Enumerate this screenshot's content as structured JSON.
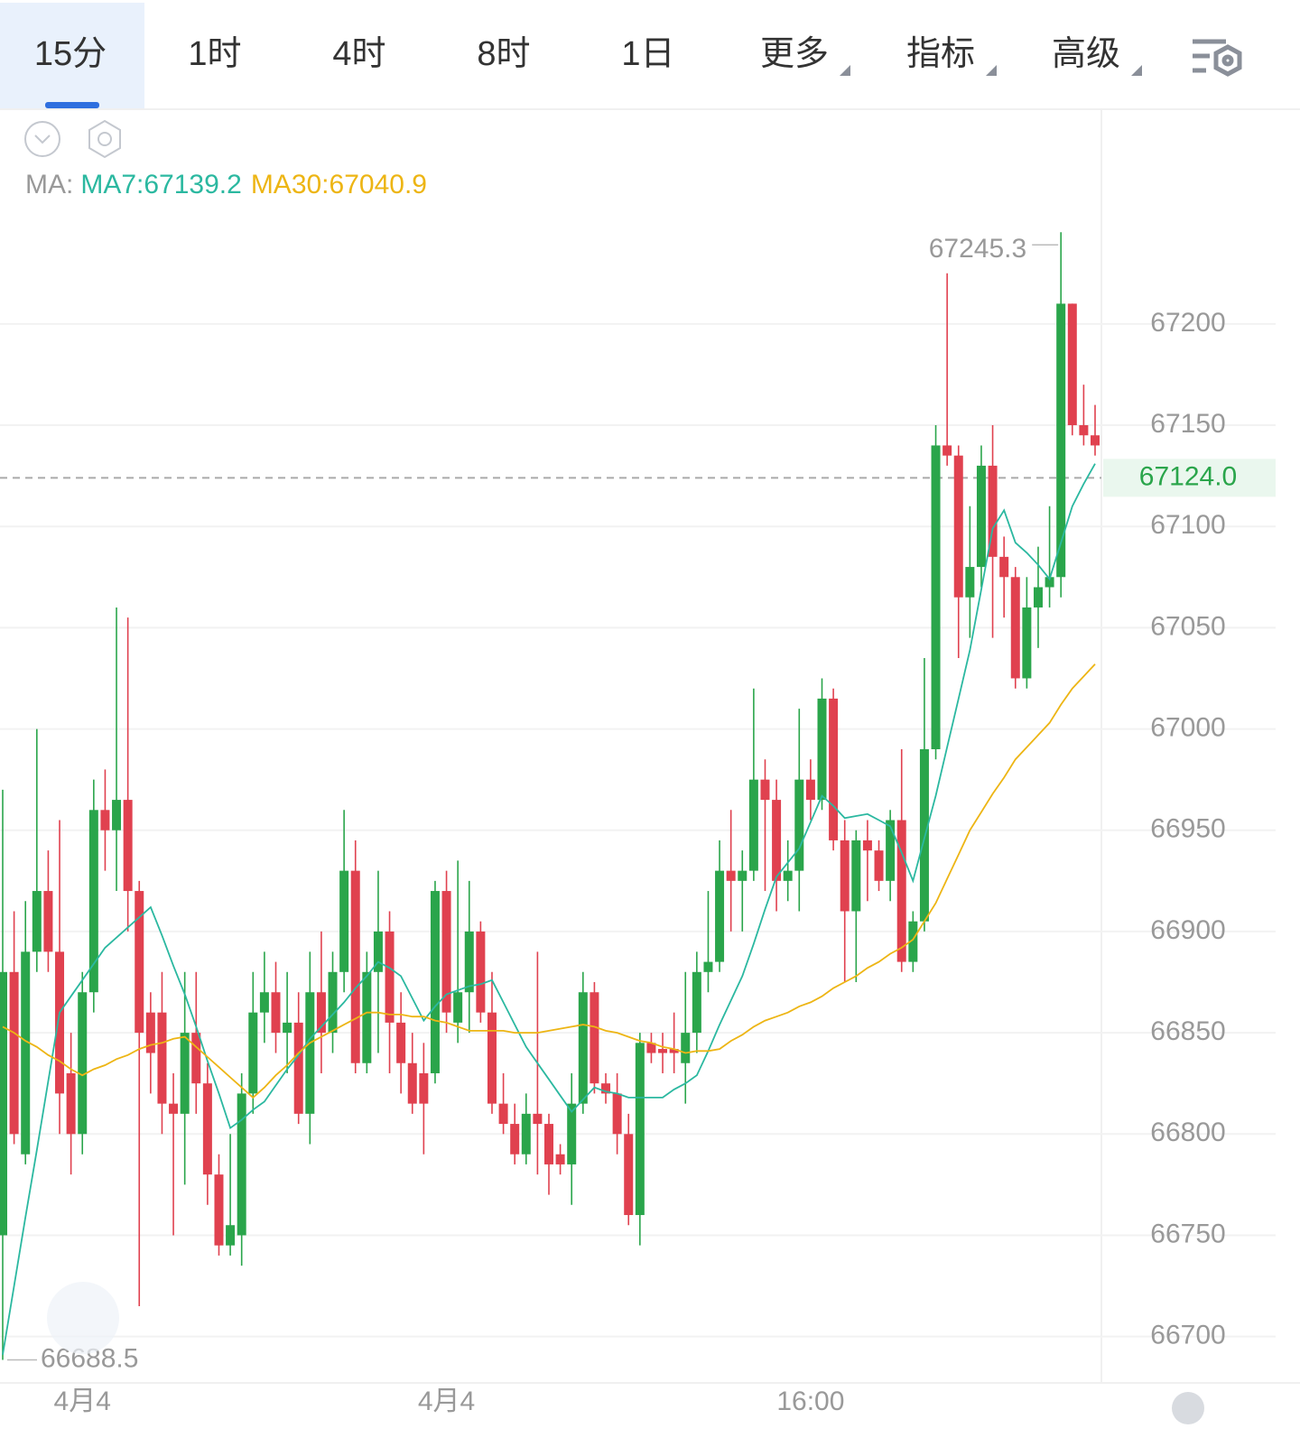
{
  "tabs": [
    "15分",
    "1时",
    "4时",
    "8时",
    "1日",
    "更多",
    "指标",
    "高级"
  ],
  "chart_data": {
    "type": "candlestick",
    "indicator_label": "MA:",
    "up_color": "#2aa54b",
    "down_color": "#e0414f",
    "categories": [
      null,
      null,
      null,
      null,
      null,
      null,
      null,
      "4月4",
      null,
      null,
      null,
      null,
      null,
      null,
      null,
      null,
      null,
      null,
      null,
      null,
      null,
      null,
      null,
      null,
      null,
      null,
      null,
      null,
      null,
      null,
      null,
      null,
      null,
      null,
      null,
      null,
      null,
      null,
      null,
      "4月4",
      null,
      null,
      null,
      null,
      null,
      null,
      null,
      null,
      null,
      null,
      null,
      null,
      null,
      null,
      null,
      null,
      null,
      null,
      null,
      null,
      null,
      null,
      null,
      null,
      null,
      null,
      null,
      null,
      null,
      null,
      null,
      "16:00",
      null,
      null,
      null,
      null,
      null,
      null,
      null,
      null,
      null,
      null,
      null,
      null,
      null,
      null,
      null,
      null,
      null,
      null,
      null,
      null,
      null,
      null,
      null,
      null,
      null
    ],
    "open": [
      66750,
      66880,
      66790,
      66890,
      66920,
      66890,
      66830,
      66800,
      66870,
      66960,
      66950,
      66965,
      66920,
      66860,
      66860,
      66815,
      66810,
      66850,
      66825,
      66780,
      66745,
      66750,
      66820,
      66860,
      66870,
      66850,
      66855,
      66810,
      66870,
      66850,
      66880,
      66930,
      66835,
      66880,
      66900,
      66855,
      66835,
      66830,
      66830,
      66920,
      66855,
      66870,
      66900,
      66860,
      66815,
      66805,
      66790,
      66810,
      66805,
      66790,
      66785,
      66815,
      66870,
      66825,
      66820,
      66800,
      66760,
      66845,
      66842,
      66842,
      66835,
      66850,
      66880,
      66885,
      66930,
      66925,
      66930,
      66975,
      66965,
      66925,
      66930,
      66975,
      66965,
      67015,
      66945,
      66910,
      66945,
      66940,
      66925,
      66955,
      66885,
      66905,
      66990,
      67140,
      67135,
      67065,
      67080,
      67130,
      67085,
      67075,
      67025,
      67060,
      67070,
      67075,
      67210,
      67150,
      67145
    ],
    "high": [
      66970,
      66910,
      66915,
      67000,
      66940,
      66955,
      66850,
      66880,
      66975,
      66980,
      67060,
      67055,
      66925,
      66870,
      66880,
      66830,
      66880,
      66880,
      66835,
      66790,
      66800,
      66830,
      66880,
      66890,
      66885,
      66880,
      66870,
      66890,
      66900,
      66890,
      66960,
      66945,
      66890,
      66930,
      66910,
      66870,
      66850,
      66845,
      66925,
      66930,
      66935,
      66925,
      66905,
      66880,
      66830,
      66815,
      66820,
      66890,
      66810,
      66795,
      66830,
      66880,
      66875,
      66830,
      66830,
      66810,
      66850,
      66850,
      66850,
      66860,
      66880,
      66890,
      66920,
      66945,
      66960,
      66940,
      67020,
      66985,
      66975,
      66945,
      67010,
      66985,
      67025,
      67020,
      66955,
      66950,
      66955,
      66945,
      66960,
      66990,
      66910,
      67035,
      67150,
      67225,
      67140,
      67110,
      67140,
      67150,
      67095,
      67080,
      67075,
      67090,
      67110,
      67245.3,
      67210,
      67170,
      67160
    ],
    "low": [
      66688.5,
      66795,
      66785,
      66880,
      66880,
      66800,
      66780,
      66790,
      66860,
      66930,
      66920,
      66900,
      66715,
      66820,
      66800,
      66750,
      66775,
      66810,
      66765,
      66740,
      66740,
      66735,
      66810,
      66845,
      66840,
      66830,
      66805,
      66795,
      66830,
      66840,
      66870,
      66830,
      66830,
      66840,
      66830,
      66820,
      66810,
      66790,
      66825,
      66850,
      66845,
      66850,
      66855,
      66810,
      66800,
      66785,
      66785,
      66780,
      66770,
      66780,
      66765,
      66810,
      66820,
      66815,
      66790,
      66755,
      66745,
      66835,
      66830,
      66830,
      66815,
      66840,
      66870,
      66880,
      66900,
      66900,
      66925,
      66920,
      66910,
      66915,
      66910,
      66955,
      66960,
      66940,
      66875,
      66875,
      66915,
      66920,
      66915,
      66880,
      66880,
      66900,
      66985,
      67130,
      67035,
      67045,
      67070,
      67045,
      67055,
      67020,
      67020,
      67040,
      67060,
      67065,
      67145,
      67140,
      67135
    ],
    "close": [
      66880,
      66800,
      66890,
      66920,
      66890,
      66820,
      66800,
      66870,
      66960,
      66950,
      66965,
      66920,
      66850,
      66840,
      66815,
      66810,
      66850,
      66825,
      66780,
      66745,
      66755,
      66820,
      66860,
      66870,
      66850,
      66855,
      66810,
      66870,
      66850,
      66880,
      66930,
      66835,
      66880,
      66900,
      66855,
      66835,
      66815,
      66815,
      66920,
      66860,
      66870,
      66900,
      66860,
      66815,
      66805,
      66790,
      66810,
      66805,
      66785,
      66785,
      66815,
      66870,
      66825,
      66820,
      66800,
      66760,
      66845,
      66840,
      66840,
      66840,
      66850,
      66880,
      66885,
      66930,
      66925,
      66930,
      66975,
      66965,
      66925,
      66930,
      66975,
      66965,
      67015,
      66945,
      66910,
      66945,
      66940,
      66925,
      66955,
      66885,
      66905,
      66990,
      67140,
      67135,
      67065,
      67080,
      67130,
      67085,
      67075,
      67025,
      67060,
      67070,
      67075,
      67210,
      67150,
      67145,
      67140
    ],
    "ma_lines": [
      {
        "name": "MA7",
        "legend_label": "MA7:67139.2",
        "color": "#2bb8a0",
        "values": [
          66691,
          66725,
          66759,
          66792,
          66826,
          66860,
          66868,
          66876,
          66884,
          66892,
          66897,
          66902,
          66907,
          66912,
          66898,
          66883,
          66869,
          66853,
          66836,
          66820,
          66803,
          66807,
          66812,
          66816,
          66824,
          66832,
          66839,
          66847,
          66853,
          66859,
          66865,
          66872,
          66878,
          66885,
          66882,
          66878,
          66867,
          66856,
          66863,
          66869,
          66871,
          66873,
          66874,
          66876,
          66865,
          66854,
          66843,
          66835,
          66827,
          66819,
          66811,
          66817,
          66823,
          66821,
          66820,
          66818,
          66818,
          66818,
          66818,
          66822,
          66825,
          66829,
          66841,
          66854,
          66866,
          66878,
          66894,
          66911,
          66927,
          66934,
          66941,
          66954,
          66967,
          66962,
          66956,
          66957,
          66958,
          66955,
          66952,
          66939,
          66925,
          66946,
          66967,
          66991,
          67015,
          67039,
          67069,
          67099,
          67108,
          67092,
          67087,
          67081,
          67074,
          67092,
          67110,
          67121,
          67131
        ]
      },
      {
        "name": "MA30",
        "legend_label": "MA30:67040.9",
        "color": "#edb514",
        "values": [
          66853,
          66850,
          66846,
          66843,
          66839,
          66836,
          66832,
          66829,
          66832,
          66834,
          66837,
          66839,
          66842,
          66844,
          66845,
          66847,
          66848,
          66843,
          66838,
          66833,
          66828,
          66823,
          66818,
          66823,
          66829,
          66834,
          66840,
          66845,
          66848,
          66851,
          66854,
          66857,
          66860,
          66860,
          66859,
          66859,
          66858,
          66858,
          66856,
          66855,
          66853,
          66851,
          66851,
          66851,
          66851,
          66850,
          66850,
          66850,
          66851,
          66852,
          66853,
          66854,
          66853,
          66851,
          66850,
          66848,
          66846,
          66845,
          66843,
          66842,
          66840,
          66841,
          66841,
          66842,
          66846,
          66849,
          66853,
          66856,
          66858,
          66860,
          66863,
          66865,
          66868,
          66872,
          66875,
          66878,
          66882,
          66885,
          66889,
          66892,
          66896,
          66905,
          66914,
          66926,
          66938,
          66950,
          66959,
          66968,
          66976,
          66985,
          66991,
          66997,
          67003,
          67012,
          67020,
          67026,
          67032
        ]
      }
    ],
    "high_label": 67245.3,
    "low_label": 66688.5,
    "last_price": {
      "value": 67124,
      "label": "67124.0"
    },
    "ylim": [
      66678,
      67302
    ],
    "yticks": [
      66700,
      66750,
      66800,
      66850,
      66900,
      66950,
      67000,
      67050,
      67100,
      67150,
      67200
    ],
    "grid": true
  }
}
